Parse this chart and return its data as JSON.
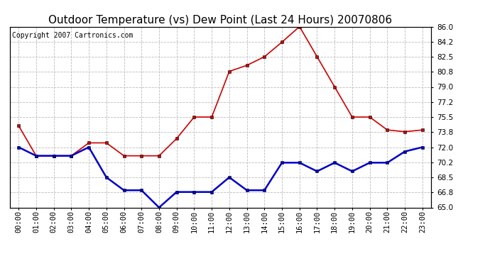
{
  "title": "Outdoor Temperature (vs) Dew Point (Last 24 Hours) 20070806",
  "copyright_text": "Copyright 2007 Cartronics.com",
  "x_labels": [
    "00:00",
    "01:00",
    "02:00",
    "03:00",
    "04:00",
    "05:00",
    "06:00",
    "07:00",
    "08:00",
    "09:00",
    "10:00",
    "11:00",
    "12:00",
    "13:00",
    "14:00",
    "15:00",
    "16:00",
    "17:00",
    "18:00",
    "19:00",
    "20:00",
    "21:00",
    "22:00",
    "23:00"
  ],
  "temp_data": [
    74.5,
    71.0,
    71.0,
    71.0,
    72.5,
    72.5,
    71.0,
    71.0,
    71.0,
    73.0,
    75.5,
    75.5,
    80.8,
    81.5,
    82.5,
    84.2,
    86.0,
    82.5,
    79.0,
    75.5,
    75.5,
    74.0,
    73.8,
    74.0
  ],
  "dew_data": [
    72.0,
    71.0,
    71.0,
    71.0,
    72.0,
    68.5,
    67.0,
    67.0,
    65.0,
    66.8,
    66.8,
    66.8,
    68.5,
    67.0,
    67.0,
    70.2,
    70.2,
    69.2,
    70.2,
    69.2,
    70.2,
    70.2,
    71.5,
    72.0
  ],
  "temp_color": "#cc0000",
  "dew_color": "#0000cc",
  "background_color": "#ffffff",
  "plot_bg_color": "#ffffff",
  "grid_color": "#bbbbbb",
  "ylim": [
    65.0,
    86.0
  ],
  "yticks": [
    65.0,
    66.8,
    68.5,
    70.2,
    72.0,
    73.8,
    75.5,
    77.2,
    79.0,
    80.8,
    82.5,
    84.2,
    86.0
  ],
  "title_fontsize": 11,
  "copyright_fontsize": 7,
  "tick_fontsize": 7.5
}
